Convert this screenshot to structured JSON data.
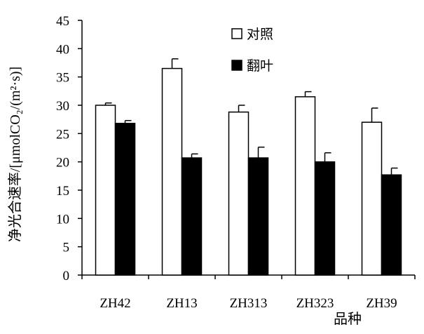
{
  "chart_data": {
    "type": "bar",
    "title": "",
    "xlabel": "品种",
    "ylabel": "净光合速率/[μmolCO₂/(m²·s)]",
    "ylim": [
      0,
      45
    ],
    "y_ticks": [
      0,
      5,
      10,
      15,
      20,
      25,
      30,
      35,
      40,
      45
    ],
    "categories": [
      "ZH42",
      "ZH13",
      "ZH313",
      "ZH323",
      "ZH39"
    ],
    "series": [
      {
        "name": "对照",
        "color": "#ffffff",
        "values": [
          30.0,
          36.5,
          28.8,
          31.5,
          27.0
        ],
        "errors": [
          0.4,
          1.7,
          1.2,
          0.9,
          2.5
        ]
      },
      {
        "name": "翻叶",
        "color": "#000000",
        "values": [
          26.8,
          20.7,
          20.7,
          20.0,
          17.7
        ],
        "errors": [
          0.5,
          0.7,
          1.9,
          1.6,
          1.2
        ]
      }
    ],
    "grid": false,
    "legend_position": "top-right"
  }
}
